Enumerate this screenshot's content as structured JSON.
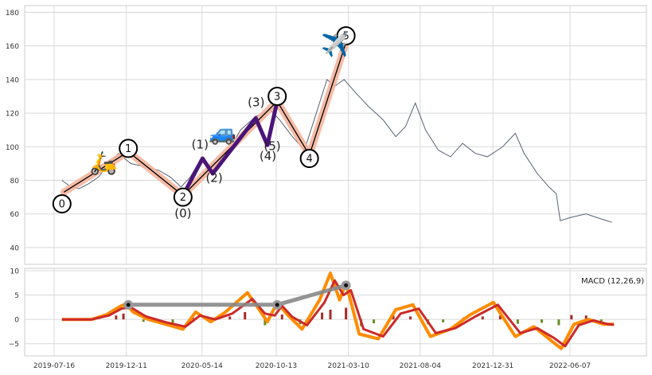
{
  "chart_data": [
    {
      "type": "line",
      "panel": "price",
      "ylim": [
        30,
        184
      ],
      "y_ticks": [
        "40",
        "60",
        "80",
        "100",
        "120",
        "140",
        "160",
        "180"
      ],
      "grid": true,
      "colors": {
        "price": "#5a6472",
        "main_wave_band": "#f4b49c",
        "main_wave_line": "#000000",
        "sub_wave": "#4a1478"
      },
      "price_series": [
        {
          "x": "2019-08-01",
          "y": 80
        },
        {
          "x": "2019-08-15",
          "y": 77
        },
        {
          "x": "2019-09-05",
          "y": 75
        },
        {
          "x": "2019-09-25",
          "y": 78
        },
        {
          "x": "2019-10-15",
          "y": 82
        },
        {
          "x": "2019-11-05",
          "y": 90
        },
        {
          "x": "2019-11-25",
          "y": 96
        },
        {
          "x": "2019-12-20",
          "y": 90
        },
        {
          "x": "2020-01-20",
          "y": 88
        },
        {
          "x": "2020-02-15",
          "y": 86
        },
        {
          "x": "2020-03-10",
          "y": 82
        },
        {
          "x": "2020-04-01",
          "y": 76
        },
        {
          "x": "2020-04-20",
          "y": 82
        },
        {
          "x": "2020-05-10",
          "y": 92
        },
        {
          "x": "2020-06-05",
          "y": 86
        },
        {
          "x": "2020-07-01",
          "y": 95
        },
        {
          "x": "2020-08-01",
          "y": 110
        },
        {
          "x": "2020-09-01",
          "y": 118
        },
        {
          "x": "2020-10-01",
          "y": 122
        },
        {
          "x": "2020-10-20",
          "y": 116
        },
        {
          "x": "2020-11-15",
          "y": 106
        },
        {
          "x": "2020-12-10",
          "y": 98
        },
        {
          "x": "2021-01-01",
          "y": 118
        },
        {
          "x": "2021-01-25",
          "y": 140
        },
        {
          "x": "2021-02-10",
          "y": 136
        },
        {
          "x": "2021-03-01",
          "y": 140
        },
        {
          "x": "2021-03-25",
          "y": 132
        },
        {
          "x": "2021-04-20",
          "y": 124
        },
        {
          "x": "2021-05-20",
          "y": 116
        },
        {
          "x": "2021-06-15",
          "y": 106
        },
        {
          "x": "2021-07-05",
          "y": 112
        },
        {
          "x": "2021-07-25",
          "y": 126
        },
        {
          "x": "2021-08-15",
          "y": 110
        },
        {
          "x": "2021-09-10",
          "y": 98
        },
        {
          "x": "2021-10-05",
          "y": 94
        },
        {
          "x": "2021-10-30",
          "y": 102
        },
        {
          "x": "2021-11-25",
          "y": 96
        },
        {
          "x": "2021-12-20",
          "y": 94
        },
        {
          "x": "2022-01-20",
          "y": 100
        },
        {
          "x": "2022-02-15",
          "y": 108
        },
        {
          "x": "2022-03-05",
          "y": 96
        },
        {
          "x": "2022-04-01",
          "y": 84
        },
        {
          "x": "2022-04-25",
          "y": 76
        },
        {
          "x": "2022-05-10",
          "y": 72
        },
        {
          "x": "2022-05-18",
          "y": 56
        },
        {
          "x": "2022-06-10",
          "y": 58
        },
        {
          "x": "2022-07-10",
          "y": 60
        },
        {
          "x": "2022-08-10",
          "y": 57
        },
        {
          "x": "2022-09-01",
          "y": 55
        }
      ],
      "main_wave": [
        {
          "label": "0",
          "x": "2019-08-05",
          "y": 73
        },
        {
          "label": "1",
          "x": "2019-12-15",
          "y": 97
        },
        {
          "label": "2",
          "x": "2020-04-05",
          "y": 71
        },
        {
          "label": "3",
          "x": "2020-10-15",
          "y": 127
        },
        {
          "label": "4",
          "x": "2020-12-20",
          "y": 95
        },
        {
          "label": "5",
          "x": "2021-03-05",
          "y": 162
        }
      ],
      "main_wave_circle_labels": [
        {
          "text": "0",
          "x": "2019-08-01",
          "y": 66
        },
        {
          "text": "1",
          "x": "2019-12-15",
          "y": 99
        },
        {
          "text": "2",
          "x": "2020-04-05",
          "y": 70
        },
        {
          "text": "3",
          "x": "2020-10-15",
          "y": 130
        },
        {
          "text": "4",
          "x": "2020-12-20",
          "y": 93
        },
        {
          "text": "5",
          "x": "2021-03-05",
          "y": 166
        }
      ],
      "sub_wave": [
        {
          "x": "2020-04-05",
          "y": 71
        },
        {
          "x": "2020-05-15",
          "y": 93
        },
        {
          "x": "2020-06-05",
          "y": 84
        },
        {
          "x": "2020-09-01",
          "y": 117
        },
        {
          "x": "2020-09-25",
          "y": 101
        },
        {
          "x": "2020-10-15",
          "y": 127
        }
      ],
      "sub_wave_labels": [
        {
          "text": "(0)",
          "x": "2020-04-05",
          "y": 58
        },
        {
          "text": "(1)",
          "x": "2020-05-10",
          "y": 99
        },
        {
          "text": "(2)",
          "x": "2020-06-08",
          "y": 79
        },
        {
          "text": "(3)",
          "x": "2020-09-02",
          "y": 124
        },
        {
          "text": "(4)",
          "x": "2020-09-26",
          "y": 92
        },
        {
          "text": "(5)",
          "x": "2020-10-05",
          "y": 98
        }
      ],
      "emoji_markers": [
        {
          "glyph": "🛵",
          "x": "2019-10-25",
          "y": 86
        },
        {
          "glyph": "🚙",
          "x": "2020-06-25",
          "y": 104
        },
        {
          "glyph": "✈️",
          "x": "2021-02-10",
          "y": 156
        }
      ]
    },
    {
      "type": "line",
      "panel": "macd",
      "ylim": [
        -7.5,
        10.5
      ],
      "y_ticks": [
        "−5",
        "0",
        "5",
        "10"
      ],
      "grid": true,
      "annotation": "MACD (12,26,9)",
      "colors": {
        "macd": "#ff8c00",
        "signal": "#cc2a2a",
        "hist_pos": "#a52a2a",
        "hist_neg": "#6b8e23",
        "peak_line": "#888888"
      },
      "x_tick_labels": [
        "2019-07-16",
        "2019-12-11",
        "2020-05-14",
        "2020-10-13",
        "2021-03-10",
        "2021-08-04",
        "2021-12-31",
        "2022-06-07"
      ],
      "x_tick_dates": [
        "2019-07-16",
        "2019-12-11",
        "2020-05-14",
        "2020-10-13",
        "2021-03-10",
        "2021-08-04",
        "2021-12-31",
        "2022-06-07"
      ],
      "macd": [
        {
          "x": "2019-08-01",
          "y": 0
        },
        {
          "x": "2019-10-01",
          "y": 0
        },
        {
          "x": "2019-11-01",
          "y": 1
        },
        {
          "x": "2019-11-25",
          "y": 2.5
        },
        {
          "x": "2019-12-10",
          "y": 3.2
        },
        {
          "x": "2019-12-25",
          "y": 1.5
        },
        {
          "x": "2020-01-25",
          "y": 0
        },
        {
          "x": "2020-03-01",
          "y": -1
        },
        {
          "x": "2020-04-05",
          "y": -2
        },
        {
          "x": "2020-05-01",
          "y": 1.5
        },
        {
          "x": "2020-06-01",
          "y": -0.5
        },
        {
          "x": "2020-07-01",
          "y": 1.5
        },
        {
          "x": "2020-08-15",
          "y": 5.5
        },
        {
          "x": "2020-09-05",
          "y": 2.5
        },
        {
          "x": "2020-09-25",
          "y": -0.5
        },
        {
          "x": "2020-10-15",
          "y": 3.5
        },
        {
          "x": "2020-11-05",
          "y": 1
        },
        {
          "x": "2020-12-05",
          "y": -2
        },
        {
          "x": "2021-01-10",
          "y": 4
        },
        {
          "x": "2021-02-01",
          "y": 9.5
        },
        {
          "x": "2021-02-20",
          "y": 4
        },
        {
          "x": "2021-03-05",
          "y": 7.5
        },
        {
          "x": "2021-04-01",
          "y": -3
        },
        {
          "x": "2021-05-10",
          "y": -4
        },
        {
          "x": "2021-06-15",
          "y": 2
        },
        {
          "x": "2021-07-20",
          "y": 3
        },
        {
          "x": "2021-08-25",
          "y": -3.5
        },
        {
          "x": "2021-10-05",
          "y": -2
        },
        {
          "x": "2021-11-15",
          "y": 1
        },
        {
          "x": "2022-01-01",
          "y": 3.5
        },
        {
          "x": "2022-02-15",
          "y": -3.5
        },
        {
          "x": "2022-03-25",
          "y": -1.5
        },
        {
          "x": "2022-04-25",
          "y": -4
        },
        {
          "x": "2022-05-20",
          "y": -6
        },
        {
          "x": "2022-06-15",
          "y": -1
        },
        {
          "x": "2022-07-15",
          "y": 0
        },
        {
          "x": "2022-08-15",
          "y": -1
        },
        {
          "x": "2022-09-05",
          "y": -1
        }
      ],
      "signal": [
        {
          "x": "2019-08-01",
          "y": 0
        },
        {
          "x": "2019-10-01",
          "y": 0
        },
        {
          "x": "2019-11-05",
          "y": 0.8
        },
        {
          "x": "2019-12-01",
          "y": 2.2
        },
        {
          "x": "2019-12-20",
          "y": 2.5
        },
        {
          "x": "2020-01-20",
          "y": 0.6
        },
        {
          "x": "2020-03-01",
          "y": -0.6
        },
        {
          "x": "2020-04-10",
          "y": -1.5
        },
        {
          "x": "2020-05-10",
          "y": 0.8
        },
        {
          "x": "2020-06-10",
          "y": 0
        },
        {
          "x": "2020-07-15",
          "y": 1.2
        },
        {
          "x": "2020-08-25",
          "y": 4.2
        },
        {
          "x": "2020-09-20",
          "y": 1.2
        },
        {
          "x": "2020-10-10",
          "y": 0.8
        },
        {
          "x": "2020-10-25",
          "y": 2.8
        },
        {
          "x": "2020-11-15",
          "y": 0.5
        },
        {
          "x": "2020-12-15",
          "y": -1.2
        },
        {
          "x": "2021-01-20",
          "y": 3.5
        },
        {
          "x": "2021-02-10",
          "y": 8
        },
        {
          "x": "2021-02-28",
          "y": 5
        },
        {
          "x": "2021-03-15",
          "y": 6
        },
        {
          "x": "2021-04-10",
          "y": -2
        },
        {
          "x": "2021-05-20",
          "y": -3.5
        },
        {
          "x": "2021-06-25",
          "y": 1.2
        },
        {
          "x": "2021-08-01",
          "y": 2.2
        },
        {
          "x": "2021-09-05",
          "y": -2.8
        },
        {
          "x": "2021-10-15",
          "y": -1.8
        },
        {
          "x": "2021-11-25",
          "y": 0.6
        },
        {
          "x": "2022-01-10",
          "y": 3
        },
        {
          "x": "2022-02-25",
          "y": -2.8
        },
        {
          "x": "2022-04-01",
          "y": -1.8
        },
        {
          "x": "2022-05-05",
          "y": -3.8
        },
        {
          "x": "2022-05-28",
          "y": -5.5
        },
        {
          "x": "2022-06-25",
          "y": -1.2
        },
        {
          "x": "2022-07-25",
          "y": -0.2
        },
        {
          "x": "2022-08-25",
          "y": -1
        },
        {
          "x": "2022-09-05",
          "y": -1.1
        }
      ],
      "histogram": [
        {
          "x": "2019-11-20",
          "y": 0.8
        },
        {
          "x": "2019-12-05",
          "y": 1.2
        },
        {
          "x": "2020-01-15",
          "y": -0.5
        },
        {
          "x": "2020-02-15",
          "y": -0.6
        },
        {
          "x": "2020-03-15",
          "y": -0.8
        },
        {
          "x": "2020-04-25",
          "y": 0.8
        },
        {
          "x": "2020-06-01",
          "y": -0.6
        },
        {
          "x": "2020-07-10",
          "y": 0.6
        },
        {
          "x": "2020-08-10",
          "y": 1.5
        },
        {
          "x": "2020-09-20",
          "y": -1.2
        },
        {
          "x": "2020-10-25",
          "y": 1
        },
        {
          "x": "2020-12-01",
          "y": -1
        },
        {
          "x": "2021-01-15",
          "y": 1.4
        },
        {
          "x": "2021-02-01",
          "y": 2
        },
        {
          "x": "2021-03-05",
          "y": 2.4
        },
        {
          "x": "2021-04-05",
          "y": -1.4
        },
        {
          "x": "2021-05-01",
          "y": -0.8
        },
        {
          "x": "2021-06-10",
          "y": 0.8
        },
        {
          "x": "2021-07-15",
          "y": 0.6
        },
        {
          "x": "2021-08-20",
          "y": -1
        },
        {
          "x": "2021-09-20",
          "y": -0.6
        },
        {
          "x": "2021-11-01",
          "y": 0.4
        },
        {
          "x": "2021-12-10",
          "y": 0.6
        },
        {
          "x": "2022-01-15",
          "y": 0.8
        },
        {
          "x": "2022-02-20",
          "y": -0.9
        },
        {
          "x": "2022-04-10",
          "y": -0.7
        },
        {
          "x": "2022-05-15",
          "y": -1.2
        },
        {
          "x": "2022-06-10",
          "y": 0.9
        },
        {
          "x": "2022-07-10",
          "y": 0.8
        },
        {
          "x": "2022-08-10",
          "y": -0.4
        }
      ],
      "peaks": [
        {
          "x": "2019-12-15",
          "y": 3
        },
        {
          "x": "2020-10-15",
          "y": 3
        },
        {
          "x": "2021-03-05",
          "y": 7
        }
      ]
    }
  ]
}
